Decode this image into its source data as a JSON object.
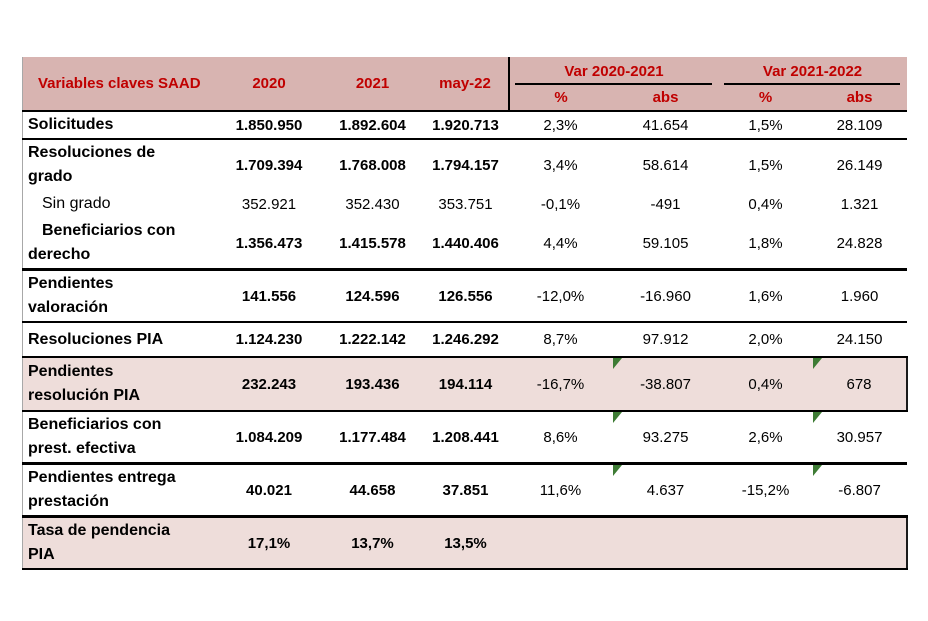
{
  "chart_data": {
    "type": "table",
    "title": "",
    "header": {
      "label_col": "Variables claves SAAD",
      "year_cols": [
        "2020",
        "2021",
        "may-22"
      ],
      "var_groups": [
        {
          "label": "Var 2020-2021",
          "subcols": [
            "%",
            "abs"
          ]
        },
        {
          "label": "Var 2021-2022",
          "subcols": [
            "%",
            "abs"
          ]
        }
      ]
    },
    "rows": [
      {
        "label": "Solicitudes",
        "cells": [
          "1.850.950",
          "1.892.604",
          "1.920.713",
          "2,3%",
          "41.654",
          "1,5%",
          "28.109"
        ]
      },
      {
        "label": "Resoluciones de grado",
        "cells": [
          "1.709.394",
          "1.768.008",
          "1.794.157",
          "3,4%",
          "58.614",
          "1,5%",
          "26.149"
        ]
      },
      {
        "label": "Sin grado",
        "cells": [
          "352.921",
          "352.430",
          "353.751",
          "-0,1%",
          "-491",
          "0,4%",
          "1.321"
        ]
      },
      {
        "label": "Beneficiarios con derecho",
        "cells": [
          "1.356.473",
          "1.415.578",
          "1.440.406",
          "4,4%",
          "59.105",
          "1,8%",
          "24.828"
        ]
      },
      {
        "label": "Pendientes valoración",
        "cells": [
          "141.556",
          "124.596",
          "126.556",
          "-12,0%",
          "-16.960",
          "1,6%",
          "1.960"
        ]
      },
      {
        "label": "Resoluciones PIA",
        "cells": [
          "1.124.230",
          "1.222.142",
          "1.246.292",
          "8,7%",
          "97.912",
          "2,0%",
          "24.150"
        ]
      },
      {
        "label": "Pendientes resolución PIA",
        "cells": [
          "232.243",
          "193.436",
          "194.114",
          "-16,7%",
          "-38.807",
          "0,4%",
          "678"
        ]
      },
      {
        "label": "Beneficiarios con prest. efectiva",
        "cells": [
          "1.084.209",
          "1.177.484",
          "1.208.441",
          "8,6%",
          "93.275",
          "2,6%",
          "30.957"
        ]
      },
      {
        "label": "Pendientes entrega prestación",
        "cells": [
          "40.021",
          "44.658",
          "37.851",
          "11,6%",
          "4.637",
          "-15,2%",
          "-6.807"
        ]
      },
      {
        "label": "Tasa de pendencia PIA",
        "cells": [
          "17,1%",
          "13,7%",
          "13,5%",
          "",
          "",
          "",
          ""
        ]
      }
    ],
    "layout_notes": {
      "highlighted_rows": [
        "Pendientes resolución PIA",
        "Tasa de pendencia PIA"
      ],
      "error_indicator_cells": "green corner triangles on 'abs' cells of rows: Pendientes resolución PIA, Beneficiarios con prest. efectiva, Pendientes entrega prestación"
    }
  },
  "colors": {
    "header_bg": "#d8b4b1",
    "header_text": "#c00000",
    "highlight_row_bg": "#eeddda",
    "body_text": "#000000",
    "grid_border": "#000000",
    "table_left_border": "#a8a8a8",
    "error_triangle_green": "#3e7c35"
  }
}
